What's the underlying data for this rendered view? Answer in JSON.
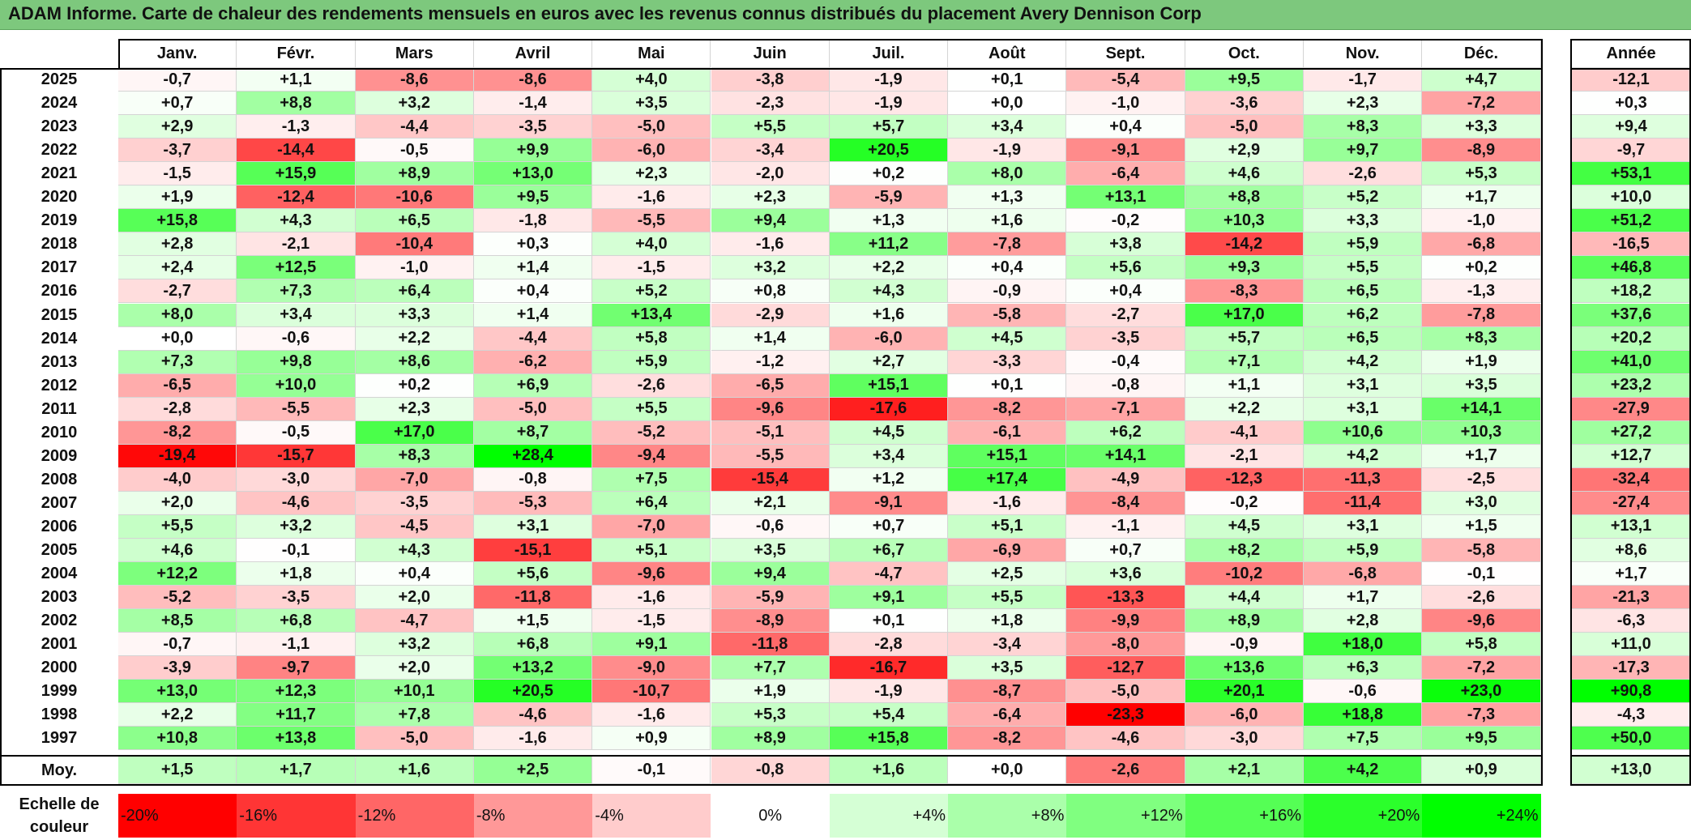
{
  "title": "ADAM Informe. Carte de chaleur des rendements mensuels en euros avec les revenus connus distribués du placement Avery Dennison Corp",
  "months": [
    "Janv.",
    "Févr.",
    "Mars",
    "Avril",
    "Mai",
    "Juin",
    "Juil.",
    "Août",
    "Sept.",
    "Oct.",
    "Nov.",
    "Déc."
  ],
  "year_header": "Année",
  "avg_label": "Moy.",
  "scale_label": "Echelle de couleur",
  "scale": [
    {
      "label": "-20%",
      "color": "#ff0000",
      "align": "left"
    },
    {
      "label": "-16%",
      "color": "#ff3535",
      "align": "left"
    },
    {
      "label": "-12%",
      "color": "#ff6666",
      "align": "left"
    },
    {
      "label": "-8%",
      "color": "#ff9898",
      "align": "left"
    },
    {
      "label": "-4%",
      "color": "#ffcccc",
      "align": "left"
    },
    {
      "label": "0%",
      "color": "#ffffff",
      "align": "center"
    },
    {
      "label": "+4%",
      "color": "#d5ffd5",
      "align": "right"
    },
    {
      "label": "+8%",
      "color": "#aaffaa",
      "align": "right"
    },
    {
      "label": "+12%",
      "color": "#80ff80",
      "align": "right"
    },
    {
      "label": "+16%",
      "color": "#55ff55",
      "align": "right"
    },
    {
      "label": "+20%",
      "color": "#2bff2b",
      "align": "right"
    },
    {
      "label": "+24%",
      "color": "#00ff00",
      "align": "right"
    }
  ],
  "chart_data": {
    "type": "heatmap",
    "title": "ADAM Informe. Carte de chaleur des rendements mensuels en euros avec les revenus connus distribués du placement Avery Dennison Corp",
    "columns": [
      "Janv.",
      "Févr.",
      "Mars",
      "Avril",
      "Mai",
      "Juin",
      "Juil.",
      "Août",
      "Sept.",
      "Oct.",
      "Nov.",
      "Déc.",
      "Année"
    ],
    "rows": [
      {
        "year": "2025",
        "values": [
          "-0,7",
          "+1,1",
          "-8,6",
          "-8,6",
          "+4,0",
          "-3,8",
          "-1,9",
          "+0,1",
          "-5,4",
          "+9,5",
          "-1,7",
          "+4,7"
        ],
        "annual": "-12,1"
      },
      {
        "year": "2024",
        "values": [
          "+0,7",
          "+8,8",
          "+3,2",
          "-1,4",
          "+3,5",
          "-2,3",
          "-1,9",
          "+0,0",
          "-1,0",
          "-3,6",
          "+2,3",
          "-7,2"
        ],
        "annual": "+0,3"
      },
      {
        "year": "2023",
        "values": [
          "+2,9",
          "-1,3",
          "-4,4",
          "-3,5",
          "-5,0",
          "+5,5",
          "+5,7",
          "+3,4",
          "+0,4",
          "-5,0",
          "+8,3",
          "+3,3"
        ],
        "annual": "+9,4"
      },
      {
        "year": "2022",
        "values": [
          "-3,7",
          "-14,4",
          "-0,5",
          "+9,9",
          "-6,0",
          "-3,4",
          "+20,5",
          "-1,9",
          "-9,1",
          "+2,9",
          "+9,7",
          "-8,9"
        ],
        "annual": "-9,7"
      },
      {
        "year": "2021",
        "values": [
          "-1,5",
          "+15,9",
          "+8,9",
          "+13,0",
          "+2,3",
          "-2,0",
          "+0,2",
          "+8,0",
          "-6,4",
          "+4,6",
          "-2,6",
          "+5,3"
        ],
        "annual": "+53,1"
      },
      {
        "year": "2020",
        "values": [
          "+1,9",
          "-12,4",
          "-10,6",
          "+9,5",
          "-1,6",
          "+2,3",
          "-5,9",
          "+1,3",
          "+13,1",
          "+8,8",
          "+5,2",
          "+1,7"
        ],
        "annual": "+10,0"
      },
      {
        "year": "2019",
        "values": [
          "+15,8",
          "+4,3",
          "+6,5",
          "-1,8",
          "-5,5",
          "+9,4",
          "+1,3",
          "+1,6",
          "-0,2",
          "+10,3",
          "+3,3",
          "-1,0"
        ],
        "annual": "+51,2"
      },
      {
        "year": "2018",
        "values": [
          "+2,8",
          "-2,1",
          "-10,4",
          "+0,3",
          "+4,0",
          "-1,6",
          "+11,2",
          "-7,8",
          "+3,8",
          "-14,2",
          "+5,9",
          "-6,8"
        ],
        "annual": "-16,5"
      },
      {
        "year": "2017",
        "values": [
          "+2,4",
          "+12,5",
          "-1,0",
          "+1,4",
          "-1,5",
          "+3,2",
          "+2,2",
          "+0,4",
          "+5,6",
          "+9,3",
          "+5,5",
          "+0,2"
        ],
        "annual": "+46,8"
      },
      {
        "year": "2016",
        "values": [
          "-2,7",
          "+7,3",
          "+6,4",
          "+0,4",
          "+5,2",
          "+0,8",
          "+4,3",
          "-0,9",
          "+0,4",
          "-8,3",
          "+6,5",
          "-1,3"
        ],
        "annual": "+18,2"
      },
      {
        "year": "2015",
        "values": [
          "+8,0",
          "+3,4",
          "+3,3",
          "+1,4",
          "+13,4",
          "-2,9",
          "+1,6",
          "-5,8",
          "-2,7",
          "+17,0",
          "+6,2",
          "-7,8"
        ],
        "annual": "+37,6"
      },
      {
        "year": "2014",
        "values": [
          "+0,0",
          "-0,6",
          "+2,2",
          "-4,4",
          "+5,8",
          "+1,4",
          "-6,0",
          "+4,5",
          "-3,5",
          "+5,7",
          "+6,5",
          "+8,3"
        ],
        "annual": "+20,2"
      },
      {
        "year": "2013",
        "values": [
          "+7,3",
          "+9,8",
          "+8,6",
          "-6,2",
          "+5,9",
          "-1,2",
          "+2,7",
          "-3,3",
          "-0,4",
          "+7,1",
          "+4,2",
          "+1,9"
        ],
        "annual": "+41,0"
      },
      {
        "year": "2012",
        "values": [
          "-6,5",
          "+10,0",
          "+0,2",
          "+6,9",
          "-2,6",
          "-6,5",
          "+15,1",
          "+0,1",
          "-0,8",
          "+1,1",
          "+3,1",
          "+3,5"
        ],
        "annual": "+23,2"
      },
      {
        "year": "2011",
        "values": [
          "-2,8",
          "-5,5",
          "+2,3",
          "-5,0",
          "+5,5",
          "-9,6",
          "-17,6",
          "-8,2",
          "-7,1",
          "+2,2",
          "+3,1",
          "+14,1"
        ],
        "annual": "-27,9"
      },
      {
        "year": "2010",
        "values": [
          "-8,2",
          "-0,5",
          "+17,0",
          "+8,7",
          "-5,2",
          "-5,1",
          "+4,5",
          "-6,1",
          "+6,2",
          "-4,1",
          "+10,6",
          "+10,3"
        ],
        "annual": "+27,2"
      },
      {
        "year": "2009",
        "values": [
          "-19,4",
          "-15,7",
          "+8,3",
          "+28,4",
          "-9,4",
          "-5,5",
          "+3,4",
          "+15,1",
          "+14,1",
          "-2,1",
          "+4,2",
          "+1,7"
        ],
        "annual": "+12,7"
      },
      {
        "year": "2008",
        "values": [
          "-4,0",
          "-3,0",
          "-7,0",
          "-0,8",
          "+7,5",
          "-15,4",
          "+1,2",
          "+17,4",
          "-4,9",
          "-12,3",
          "-11,3",
          "-2,5"
        ],
        "annual": "-32,4"
      },
      {
        "year": "2007",
        "values": [
          "+2,0",
          "-4,6",
          "-3,5",
          "-5,3",
          "+6,4",
          "+2,1",
          "-9,1",
          "-1,6",
          "-8,4",
          "-0,2",
          "-11,4",
          "+3,0"
        ],
        "annual": "-27,4"
      },
      {
        "year": "2006",
        "values": [
          "+5,5",
          "+3,2",
          "-4,5",
          "+3,1",
          "-7,0",
          "-0,6",
          "+0,7",
          "+5,1",
          "-1,1",
          "+4,5",
          "+3,1",
          "+1,5"
        ],
        "annual": "+13,1"
      },
      {
        "year": "2005",
        "values": [
          "+4,6",
          "-0,1",
          "+4,3",
          "-15,1",
          "+5,1",
          "+3,5",
          "+6,7",
          "-6,9",
          "+0,7",
          "+8,2",
          "+5,9",
          "-5,8"
        ],
        "annual": "+8,6"
      },
      {
        "year": "2004",
        "values": [
          "+12,2",
          "+1,8",
          "+0,4",
          "+5,6",
          "-9,6",
          "+9,4",
          "-4,7",
          "+2,5",
          "+3,6",
          "-10,2",
          "-6,8",
          "-0,1"
        ],
        "annual": "+1,7"
      },
      {
        "year": "2003",
        "values": [
          "-5,2",
          "-3,5",
          "+2,0",
          "-11,8",
          "-1,6",
          "-5,9",
          "+9,1",
          "+5,5",
          "-13,3",
          "+4,4",
          "+1,7",
          "-2,6"
        ],
        "annual": "-21,3"
      },
      {
        "year": "2002",
        "values": [
          "+8,5",
          "+6,8",
          "-4,7",
          "+1,5",
          "-1,5",
          "-8,9",
          "+0,1",
          "+1,8",
          "-9,9",
          "+8,9",
          "+2,8",
          "-9,6"
        ],
        "annual": "-6,3"
      },
      {
        "year": "2001",
        "values": [
          "-0,7",
          "-1,1",
          "+3,2",
          "+6,8",
          "+9,1",
          "-11,8",
          "-2,8",
          "-3,4",
          "-8,0",
          "-0,9",
          "+18,0",
          "+5,8"
        ],
        "annual": "+11,0"
      },
      {
        "year": "2000",
        "values": [
          "-3,9",
          "-9,7",
          "+2,0",
          "+13,2",
          "-9,0",
          "+7,7",
          "-16,7",
          "+3,5",
          "-12,7",
          "+13,6",
          "+6,3",
          "-7,2"
        ],
        "annual": "-17,3"
      },
      {
        "year": "1999",
        "values": [
          "+13,0",
          "+12,3",
          "+10,1",
          "+20,5",
          "-10,7",
          "+1,9",
          "-1,9",
          "-8,7",
          "-5,0",
          "+20,1",
          "-0,6",
          "+23,0"
        ],
        "annual": "+90,8"
      },
      {
        "year": "1998",
        "values": [
          "+2,2",
          "+11,7",
          "+7,8",
          "-4,6",
          "-1,6",
          "+5,3",
          "+5,4",
          "-6,4",
          "-23,3",
          "-6,0",
          "+18,8",
          "-7,3"
        ],
        "annual": "-4,3"
      },
      {
        "year": "1997",
        "values": [
          "+10,8",
          "+13,8",
          "-5,0",
          "-1,6",
          "+0,9",
          "+8,9",
          "+15,8",
          "-8,2",
          "-4,6",
          "-3,0",
          "+7,5",
          "+9,5"
        ],
        "annual": "+50,0"
      }
    ],
    "average": {
      "values": [
        "+1,5",
        "+1,7",
        "+1,6",
        "+2,5",
        "-0,1",
        "-0,8",
        "+1,6",
        "+0,0",
        "-2,6",
        "+2,1",
        "+4,2",
        "+0,9"
      ],
      "annual": "+13,0"
    },
    "color_scale": {
      "min": -20,
      "max": 24,
      "negative_color": "#ff0000",
      "zero_color": "#ffffff",
      "positive_color": "#00ff00"
    }
  }
}
